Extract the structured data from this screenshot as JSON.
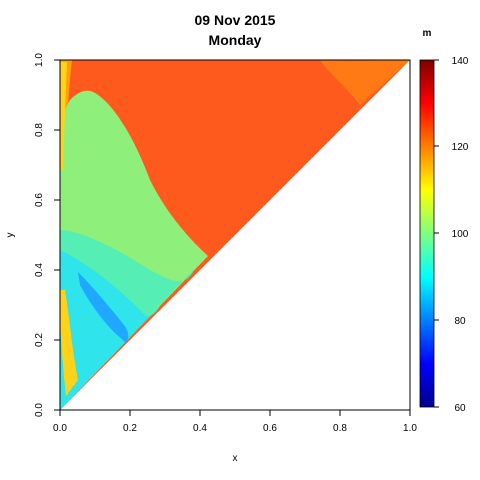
{
  "chart_data": {
    "type": "heatmap",
    "title": "09 Nov 2015",
    "subtitle": "Monday",
    "xlabel": "x",
    "ylabel": "y",
    "xlim": [
      0,
      1
    ],
    "ylim": [
      0,
      1
    ],
    "x_ticks": [
      "0.0",
      "0.2",
      "0.4",
      "0.6",
      "0.8",
      "1.0"
    ],
    "y_ticks": [
      "0.0",
      "0.2",
      "0.4",
      "0.6",
      "0.8",
      "1.0"
    ],
    "domain_shape": "upper-left triangle (y >= x)",
    "colorbar": {
      "label": "m",
      "range": [
        60,
        140
      ],
      "ticks": [
        "60",
        "80",
        "100",
        "120",
        "140"
      ],
      "colormap": "jet"
    },
    "regions": [
      {
        "description": "orange high zone",
        "approx_value": 124
      },
      {
        "description": "green mid zone",
        "approx_value": 100
      },
      {
        "description": "cyan low zone",
        "approx_value": 92
      },
      {
        "description": "blue minimum band",
        "approx_value": 84
      },
      {
        "description": "yellow left edge strip",
        "approx_value": 112
      }
    ]
  }
}
